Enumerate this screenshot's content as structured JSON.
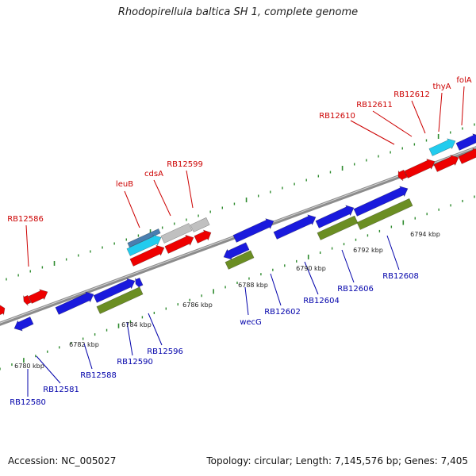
{
  "title": "Rhodopirellula baltica SH 1, complete genome",
  "footer": {
    "accession": "Accession: NC_005027",
    "topology": "Topology: circular; Length: 7,145,576 bp; Genes: 7,405"
  },
  "colors": {
    "backbone": "#8c8c8c",
    "tick": "#2e8b2e",
    "label_top": "#cc0000",
    "label_bottom": "#0000aa",
    "gene_red": "#ee0000",
    "gene_blue": "#1a1add",
    "gene_cyan": "#22ccee",
    "gene_olive": "#6b8e23",
    "gene_grey": "#c0c0c0"
  },
  "scale_labels": [
    "6780 kbp",
    "6782 kbp",
    "6784 kbp",
    "6786 kbp",
    "6788 kbp",
    "6790 kbp",
    "6792 kbp",
    "6794 kbp"
  ],
  "top_labels": [
    "RB12586",
    "leuB",
    "cdsA",
    "RB12599",
    "RB12610",
    "RB12611",
    "RB12612",
    "thyA",
    "folA"
  ],
  "bottom_labels": [
    "RB12580",
    "RB12581",
    "RB12588",
    "RB12590",
    "RB12596",
    "wecG",
    "RB12602",
    "RB12604",
    "RB12606",
    "RB12608"
  ]
}
